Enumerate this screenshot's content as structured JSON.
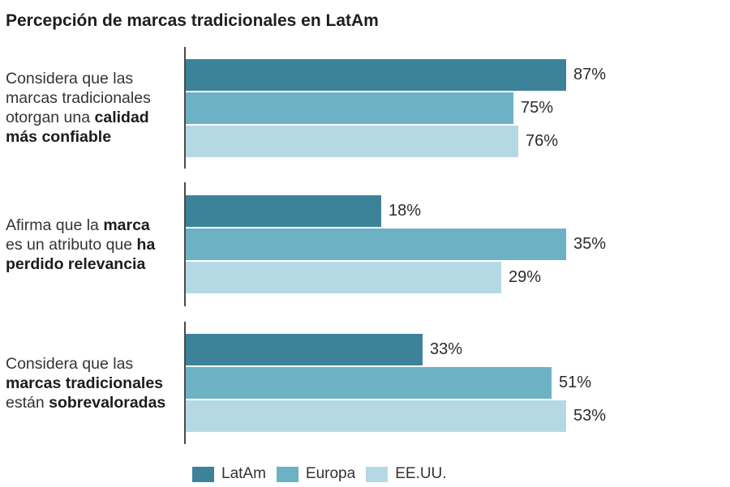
{
  "title": "Percepción de marcas tradicionales en LatAm",
  "colors": {
    "background": "#ffffff",
    "title_text": "#1e1e1e",
    "label_text": "#343434",
    "value_text": "#2b2b2b",
    "axis_line": "#4a4a4a",
    "series": [
      "#3c8399",
      "#6db1c5",
      "#b4d9e4"
    ]
  },
  "legend": {
    "items": [
      {
        "label": "LatAm",
        "color": "#3c8399"
      },
      {
        "label": "Europa",
        "color": "#6db1c5"
      },
      {
        "label": "EE.UU.",
        "color": "#b4d9e4"
      }
    ]
  },
  "chart_data": {
    "type": "bar",
    "orientation": "horizontal",
    "title": "Percepción de marcas tradicionales en LatAm",
    "unit": "%",
    "series": [
      "LatAm",
      "Europa",
      "EE.UU."
    ],
    "series_colors": [
      "#3c8399",
      "#6db1c5",
      "#b4d9e4"
    ],
    "axis_note": "no numeric axis shown; within each group the longest bar spans the full plot width",
    "legend_position": "bottom",
    "groups": [
      {
        "label_plain": "Considera que las marcas tradicionales otorgan una calidad más confiable",
        "label_lines": [
          [
            {
              "t": "Considera que las",
              "b": false
            }
          ],
          [
            {
              "t": "marcas tradicionales",
              "b": false
            }
          ],
          [
            {
              "t": "otorgan una ",
              "b": false
            },
            {
              "t": "calidad",
              "b": true
            }
          ],
          [
            {
              "t": "más confiable",
              "b": true
            }
          ]
        ],
        "values": [
          87,
          75,
          76
        ],
        "value_labels": [
          "87%",
          "75%",
          "76%"
        ]
      },
      {
        "label_plain": "Afirma que la marca es un atributo que ha perdido relevancia",
        "label_lines": [
          [
            {
              "t": "Afirma que la ",
              "b": false
            },
            {
              "t": "marca",
              "b": true
            }
          ],
          [
            {
              "t": "es un atributo que ",
              "b": false
            },
            {
              "t": "ha",
              "b": true
            }
          ],
          [
            {
              "t": "perdido relevancia",
              "b": true
            }
          ]
        ],
        "values": [
          18,
          35,
          29
        ],
        "value_labels": [
          "18%",
          "35%",
          "29%"
        ]
      },
      {
        "label_plain": "Considera que las marcas tradicionales están sobrevaloradas",
        "label_lines": [
          [
            {
              "t": "Considera que las",
              "b": false
            }
          ],
          [
            {
              "t": "marcas tradicionales",
              "b": true
            }
          ],
          [
            {
              "t": "están ",
              "b": false
            },
            {
              "t": "sobrevaloradas",
              "b": true
            }
          ]
        ],
        "values": [
          33,
          51,
          53
        ],
        "value_labels": [
          "33%",
          "51%",
          "53%"
        ]
      }
    ]
  }
}
